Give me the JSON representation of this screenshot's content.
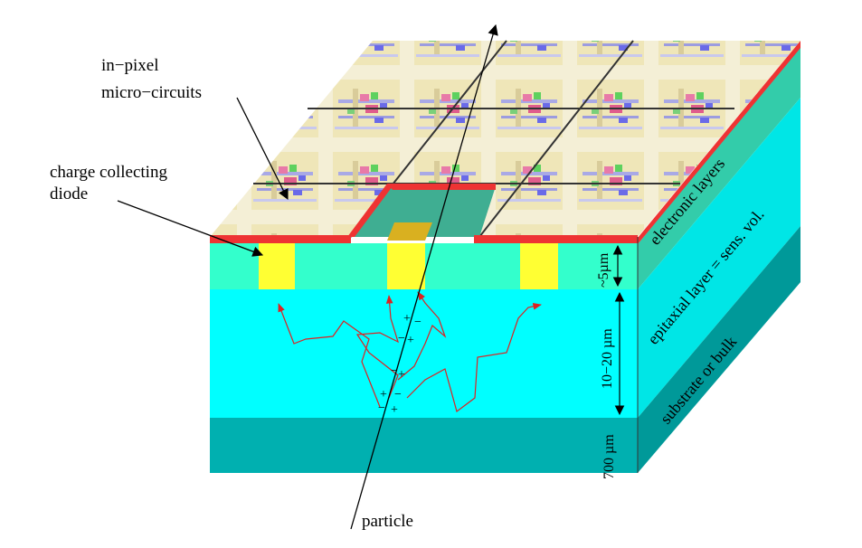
{
  "labels": {
    "in_pixel_line1": "in−pixel",
    "in_pixel_line2": "micro−circuits",
    "diode_line1": "charge collecting",
    "diode_line2": "diode",
    "particle": "particle"
  },
  "layers": {
    "electronic": "electronic layers",
    "epitaxial": "epitaxial layer = sens. vol.",
    "substrate": "substrate or bulk"
  },
  "dimensions": {
    "electronic": "~5µm",
    "epitaxial": "10−20 µm",
    "substrate": "700 µm"
  },
  "charges": {
    "plus": "+",
    "minus": "−"
  },
  "colors": {
    "electronic_layer": "#33ffcc",
    "epitaxial_layer": "#00ffff",
    "substrate_layer": "#00b0b0",
    "diode": "#ffff33",
    "metal_edge": "#ee3333",
    "drift_path": "#dd2222"
  }
}
